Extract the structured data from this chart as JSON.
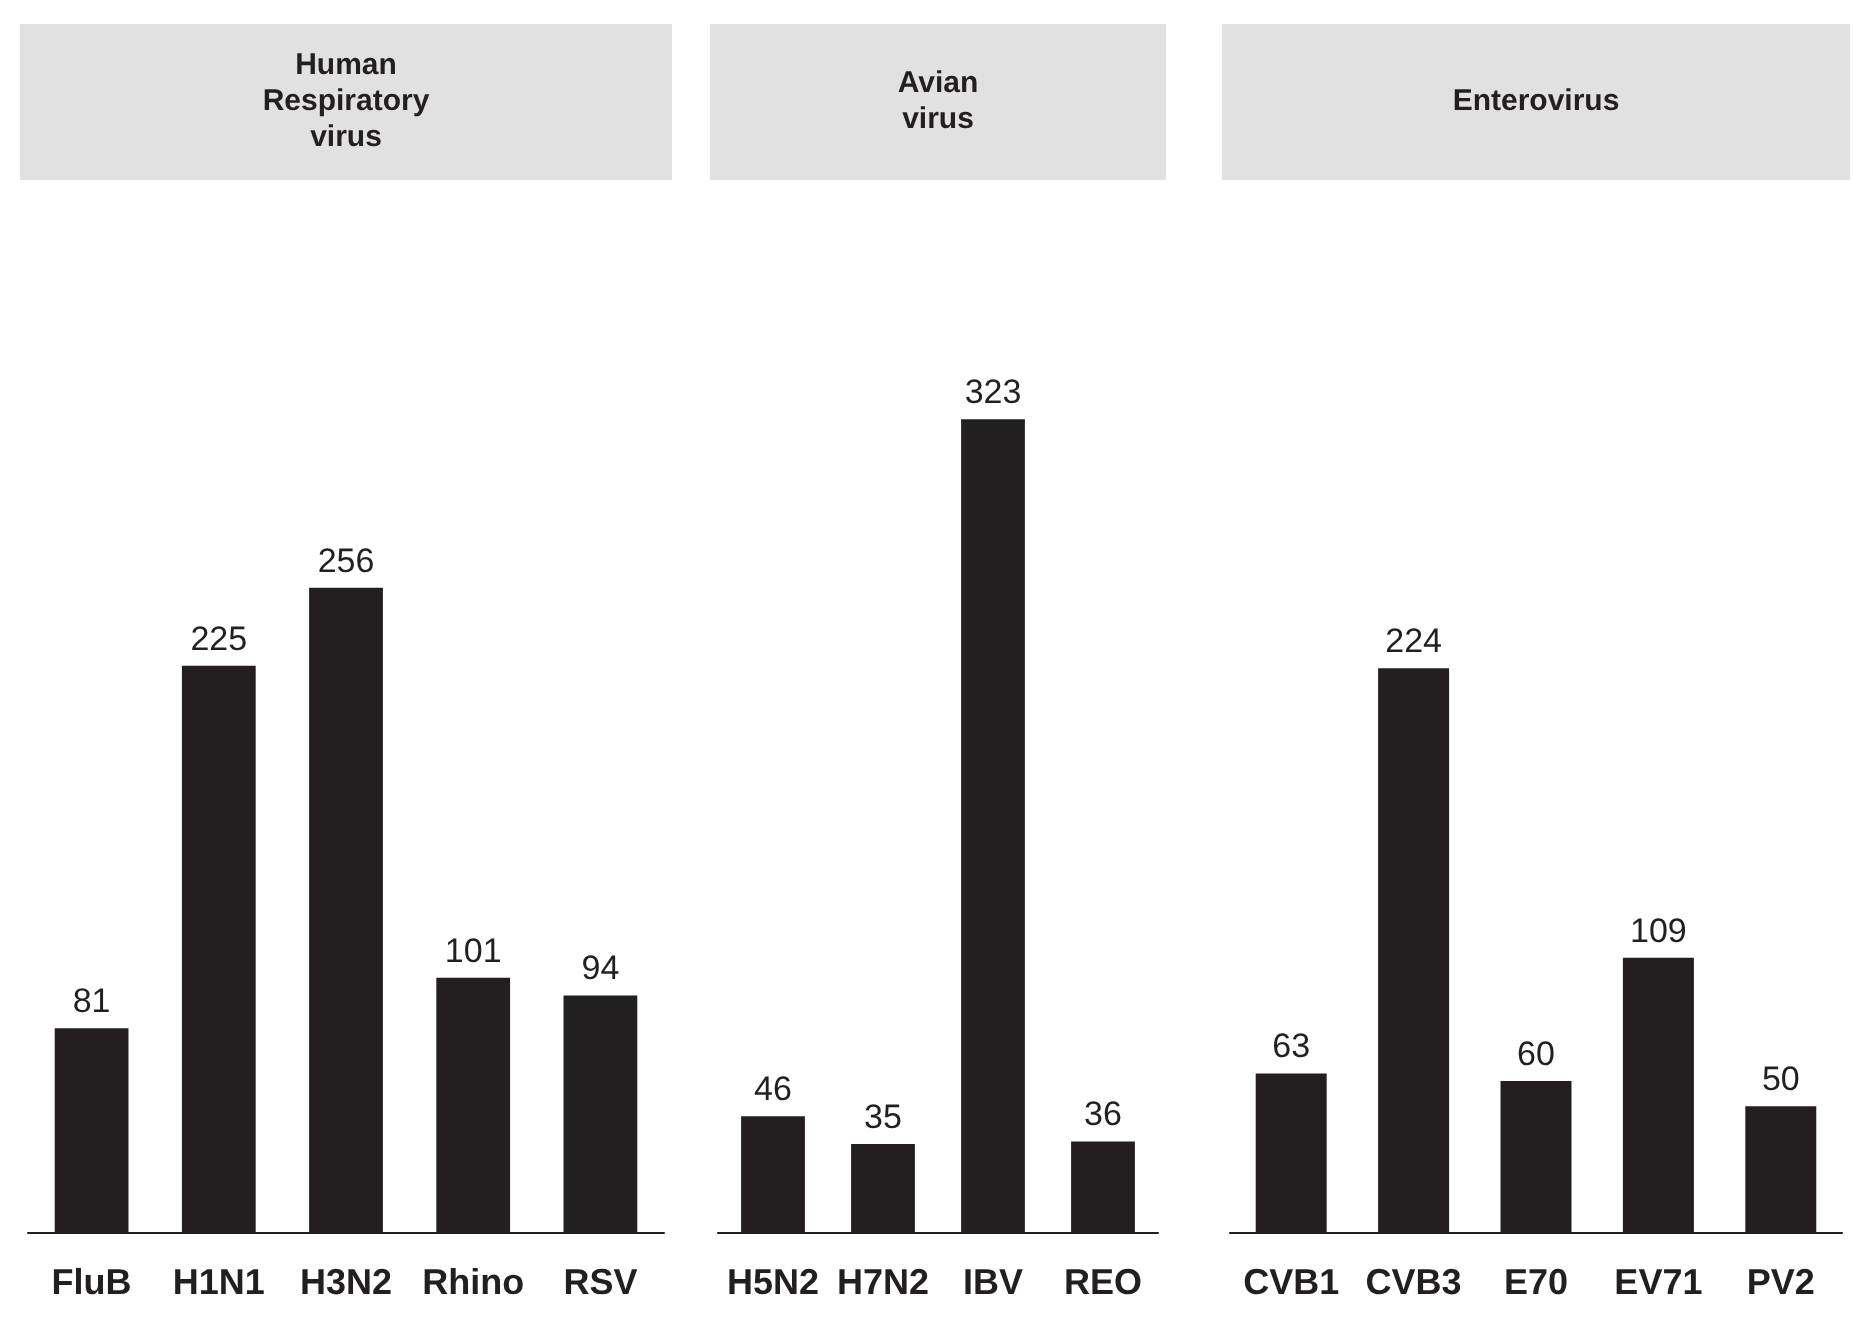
{
  "chart_data": [
    {
      "type": "bar",
      "title": "Human\nRespiratory\nvirus",
      "categories": [
        "FluB",
        "H1N1",
        "H3N2",
        "Rhino",
        "RSV"
      ],
      "values": [
        81,
        225,
        256,
        101,
        94
      ],
      "color": "#231f20",
      "data_labels": true
    },
    {
      "type": "bar",
      "title": "Avian\nvirus",
      "categories": [
        "H5N2",
        "H7N2",
        "IBV",
        "REO"
      ],
      "values": [
        46,
        35,
        323,
        36
      ],
      "color": "#231f20",
      "data_labels": true
    },
    {
      "type": "bar",
      "title": "Enterovirus",
      "categories": [
        "CVB1",
        "CVB3",
        "E70",
        "EV71",
        "PV2"
      ],
      "values": [
        63,
        224,
        60,
        109,
        50
      ],
      "color": "#231f20",
      "data_labels": true
    }
  ]
}
